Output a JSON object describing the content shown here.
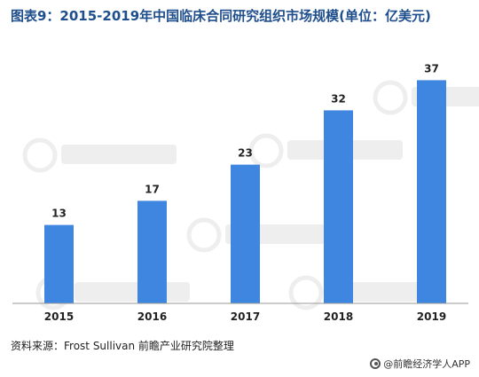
{
  "title": "图表9：2015-2019年中国临床合同研究组织市场规模(单位：亿美元)",
  "source": "资料来源：Frost Sullivan   前瞻产业研究院整理",
  "footer": "@前瞻经济学人APP",
  "colors": {
    "bar": "#3f86e0",
    "title": "#1f4e8c",
    "axis": "#999999"
  },
  "chart_data": {
    "type": "bar",
    "title": "图表9：2015-2019年中国临床合同研究组织市场规模(单位：亿美元)",
    "xlabel": "",
    "ylabel": "",
    "categories": [
      "2015",
      "2016",
      "2017",
      "2018",
      "2019"
    ],
    "values": [
      13,
      17,
      23,
      32,
      37
    ],
    "ylim": [
      0,
      40
    ],
    "grid": false,
    "legend": "none"
  }
}
